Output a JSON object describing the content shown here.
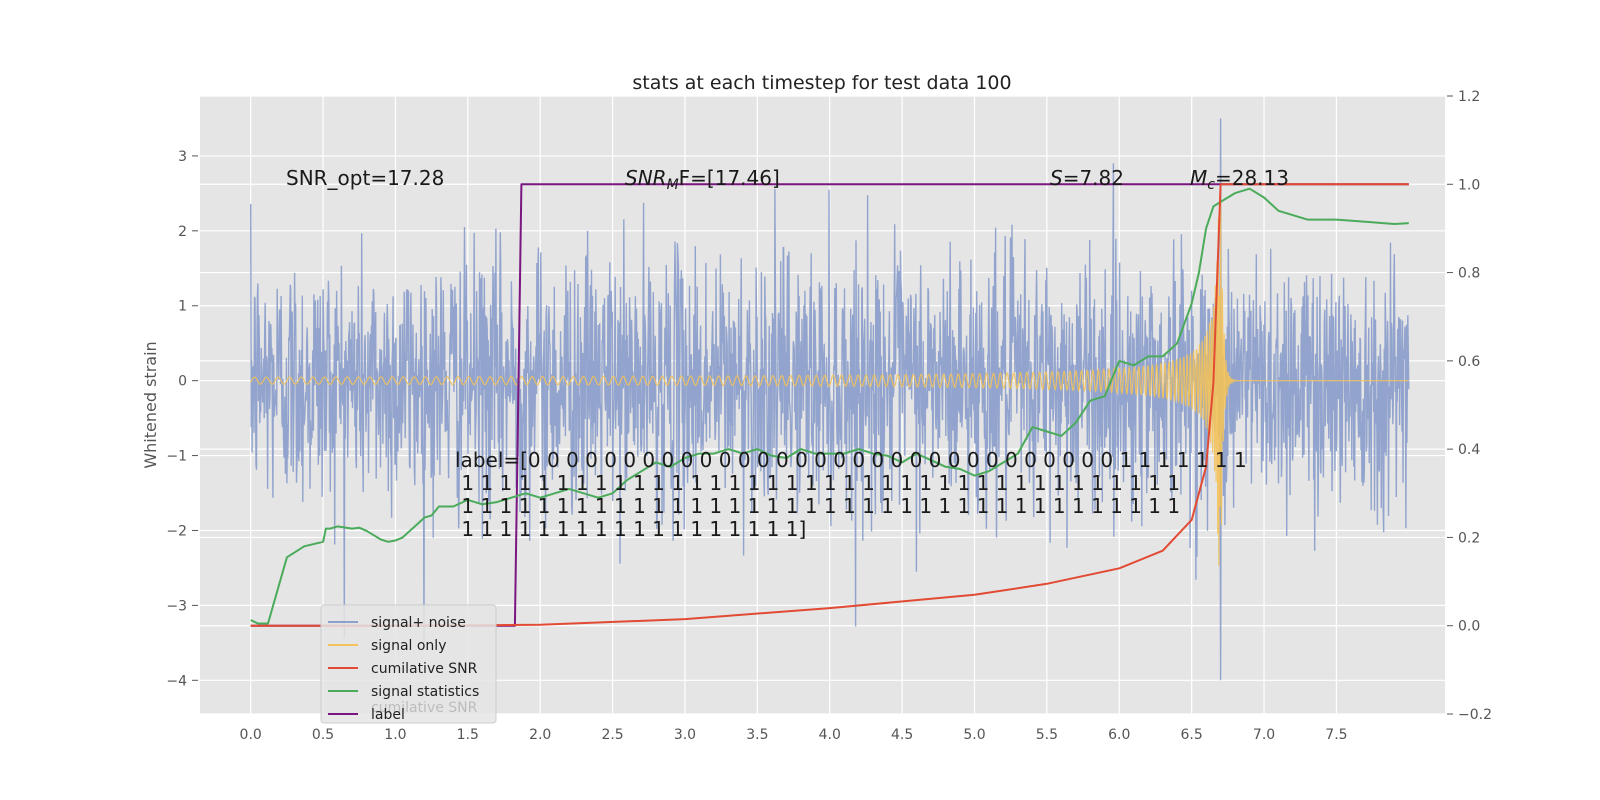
{
  "chart_data": {
    "type": "line",
    "title": "stats at each timestep for test data 100",
    "ylabel": "Whitened strain",
    "xlabel": "",
    "xlim": [
      -0.35,
      8.25
    ],
    "ylim": [
      -4.45,
      3.8
    ],
    "ylim_right": [
      -0.2,
      1.2
    ],
    "x_ticks": [
      0.0,
      0.5,
      1.0,
      1.5,
      2.0,
      2.5,
      3.0,
      3.5,
      4.0,
      4.5,
      5.0,
      5.5,
      6.0,
      6.5,
      7.0,
      7.5
    ],
    "x_tick_labels": [
      "0.0",
      "0.5",
      "1.0",
      "1.5",
      "2.0",
      "2.5",
      "3.0",
      "3.5",
      "4.0",
      "4.5",
      "5.0",
      "5.5",
      "6.0",
      "6.5",
      "7.0",
      "7.5"
    ],
    "y_ticks": [
      -4,
      -3,
      -2,
      -1,
      0,
      1,
      2,
      3
    ],
    "y_tick_labels": [
      "−4",
      "−3",
      "−2",
      "−1",
      "0",
      "1",
      "2",
      "3"
    ],
    "y_right_ticks": [
      -0.2,
      0.0,
      0.2,
      0.4,
      0.6,
      0.8,
      1.0,
      1.2
    ],
    "y_right_tick_labels": [
      "−0.2",
      "0.0",
      "0.2",
      "0.4",
      "0.6",
      "0.8",
      "1.0",
      "1.2"
    ],
    "grid": true,
    "legend_placement": "lower-left",
    "colors": {
      "background": "#e5e5e5",
      "grid": "#ffffff",
      "noise": "#8da0cb",
      "signal": "#f3c25a",
      "snr": "#e24a33",
      "stats": "#4aab5a",
      "label": "#7a1680"
    },
    "annotations": {
      "snr_opt": "SNR_opt=17.28",
      "snr_mf_var": "SNR",
      "snr_mf_sub": "M",
      "snr_mf_rest": "F=[17.46]",
      "s_var": "S",
      "s_rest": "=7.82",
      "mc_var": "M",
      "mc_sub": "c",
      "mc_rest": "=28.13"
    },
    "label_text": [
      "label=[0 0 0 0 0 0 0 0 0 0 0 0 0 0 0 0 0 0 0 0 0 0 0 0 0 0 0 0 0 0 0 1 1 1 1 1 1 1",
      " 1 1 1 1 1 1 1 1 1 1 1 1 1 1 1 1 1 1 1 1 1 1 1 1 1 1 1 1 1 1 1 1 1 1 1 1 1 1",
      " 1 1 1 1 1 1 1 1 1 1 1 1 1 1 1 1 1 1 1 1 1 1 1 1 1 1 1 1 1 1 1 1 1 1 1 1 1 1",
      " 1 1 1 1 1 1 1 1 1 1 1 1 1 1 1 1 1 1]"
    ],
    "series": [
      {
        "name": "signal+ noise",
        "axis": "left",
        "kind": "noise",
        "t_range": [
          0.0,
          8.0
        ],
        "amplitude_range": [
          -4.0,
          3.5
        ],
        "approx_std": 0.85,
        "note_peaks": [
          [
            6.7,
            3.5
          ],
          [
            6.7,
            -4.0
          ]
        ]
      },
      {
        "name": "signal only",
        "axis": "left",
        "kind": "chirp",
        "t_range": [
          0.0,
          8.0
        ],
        "merger_time": 6.7,
        "peak_amplitude": 2.8
      },
      {
        "name": "cumilative SNR",
        "axis": "right",
        "x": [
          0.0,
          1.0,
          2.0,
          3.0,
          4.0,
          5.0,
          5.5,
          6.0,
          6.3,
          6.5,
          6.6,
          6.65,
          6.7,
          8.0
        ],
        "y": [
          0.0,
          0.0,
          0.002,
          0.015,
          0.04,
          0.07,
          0.095,
          0.13,
          0.17,
          0.24,
          0.36,
          0.55,
          1.0,
          1.0
        ]
      },
      {
        "name": "signal statistics",
        "axis": "right",
        "x": [
          0.0,
          0.05,
          0.12,
          0.25,
          0.37,
          0.5,
          0.52,
          0.55,
          0.6,
          0.7,
          0.75,
          0.8,
          0.85,
          0.9,
          0.95,
          1.0,
          1.05,
          1.1,
          1.15,
          1.2,
          1.25,
          1.3,
          1.4,
          1.5,
          1.6,
          1.7,
          1.8,
          1.9,
          2.0,
          2.1,
          2.2,
          2.3,
          2.4,
          2.5,
          2.6,
          2.7,
          2.8,
          2.9,
          3.0,
          3.1,
          3.2,
          3.3,
          3.4,
          3.5,
          3.6,
          3.7,
          3.8,
          3.9,
          4.0,
          4.1,
          4.2,
          4.3,
          4.4,
          4.5,
          4.6,
          4.7,
          4.8,
          4.9,
          5.0,
          5.1,
          5.2,
          5.3,
          5.4,
          5.5,
          5.6,
          5.7,
          5.8,
          5.9,
          6.0,
          6.1,
          6.2,
          6.3,
          6.4,
          6.5,
          6.55,
          6.6,
          6.65,
          6.7,
          6.75,
          6.8,
          6.9,
          7.0,
          7.1,
          7.2,
          7.3,
          7.5,
          7.7,
          7.9,
          8.0
        ],
        "y": [
          0.013,
          0.005,
          0.005,
          0.155,
          0.18,
          0.19,
          0.22,
          0.22,
          0.225,
          0.22,
          0.222,
          0.215,
          0.205,
          0.195,
          0.19,
          0.193,
          0.2,
          0.215,
          0.23,
          0.245,
          0.25,
          0.27,
          0.27,
          0.285,
          0.275,
          0.28,
          0.29,
          0.3,
          0.29,
          0.3,
          0.31,
          0.3,
          0.29,
          0.3,
          0.33,
          0.35,
          0.37,
          0.36,
          0.38,
          0.39,
          0.39,
          0.4,
          0.39,
          0.4,
          0.385,
          0.38,
          0.4,
          0.39,
          0.39,
          0.39,
          0.4,
          0.39,
          0.385,
          0.37,
          0.39,
          0.375,
          0.36,
          0.355,
          0.34,
          0.35,
          0.37,
          0.39,
          0.45,
          0.44,
          0.43,
          0.46,
          0.51,
          0.52,
          0.6,
          0.59,
          0.61,
          0.61,
          0.64,
          0.73,
          0.8,
          0.9,
          0.95,
          0.96,
          0.97,
          0.98,
          0.99,
          0.97,
          0.94,
          0.93,
          0.92,
          0.92,
          0.915,
          0.91,
          0.912
        ]
      },
      {
        "name": "label",
        "axis": "right",
        "x": [
          0.0,
          1.825,
          1.87,
          8.0
        ],
        "y": [
          0.0,
          0.0,
          1.0,
          1.0
        ]
      }
    ],
    "legend": {
      "entries": [
        "signal+ noise",
        "signal only",
        "cumilative SNR",
        "signal statistics",
        "label"
      ],
      "ghost_text": "cumilative SNR"
    }
  }
}
